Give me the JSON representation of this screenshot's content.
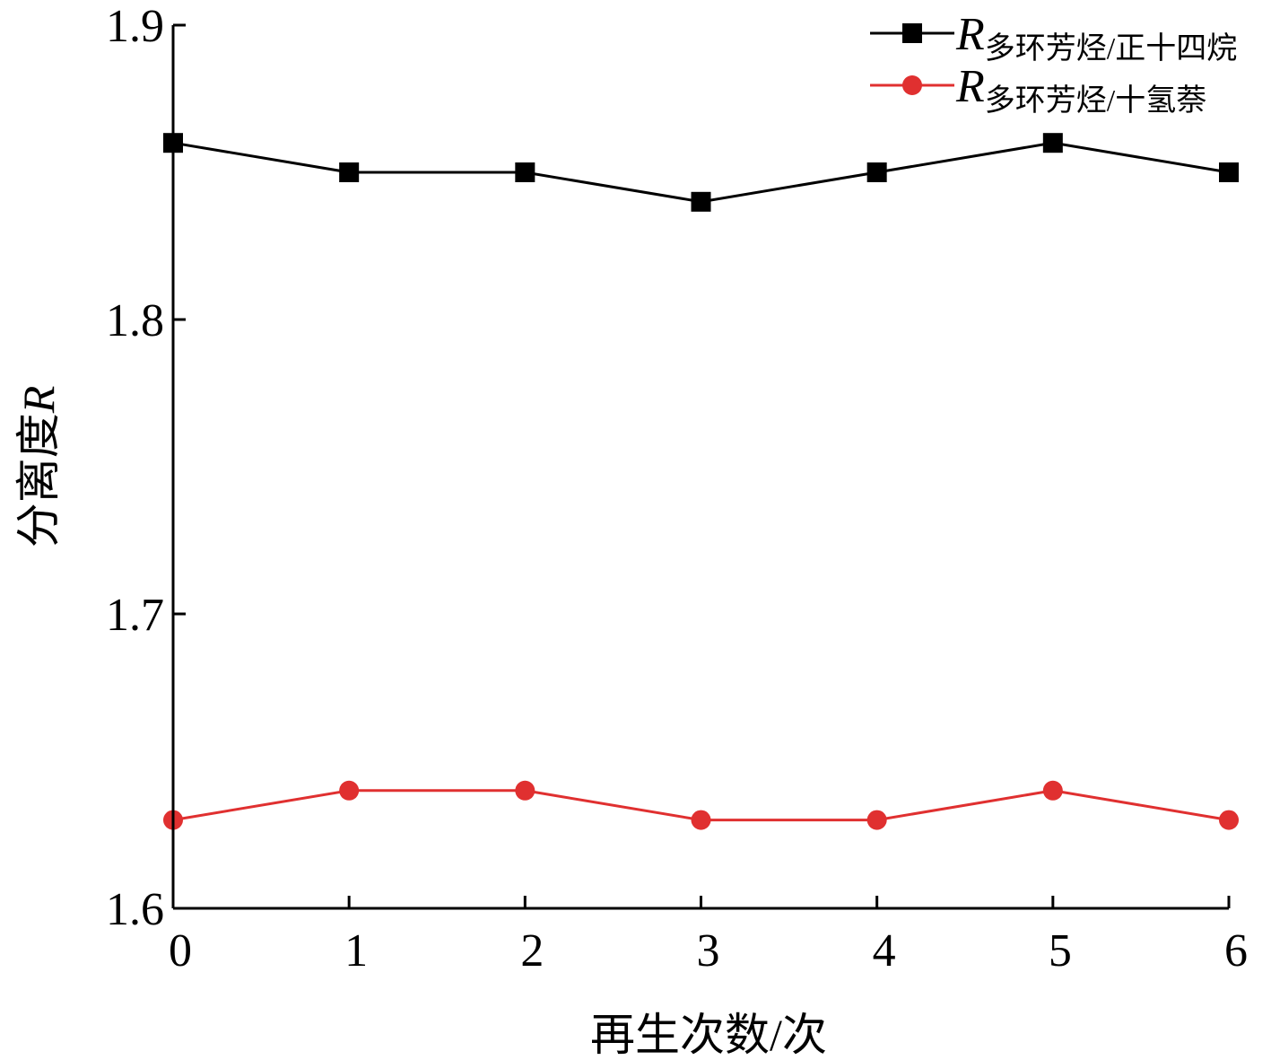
{
  "chart_data": {
    "type": "line",
    "title": "",
    "xlabel": "再生次数/次",
    "ylabel": "分离度",
    "ylabel_italic": "R",
    "x": [
      0,
      1,
      2,
      3,
      4,
      5,
      6
    ],
    "x_ticks": [
      "0",
      "1",
      "2",
      "3",
      "4",
      "5",
      "6"
    ],
    "ylim": [
      1.6,
      1.9
    ],
    "y_ticks": [
      "1.6",
      "1.7",
      "1.8",
      "1.9"
    ],
    "grid": false,
    "legend_position": "top-right",
    "series": [
      {
        "name_main": "R",
        "name_sub": "多环芳烃/正十四烷",
        "marker": "square",
        "color": "#000000",
        "values": [
          1.86,
          1.85,
          1.85,
          1.84,
          1.85,
          1.86,
          1.85
        ]
      },
      {
        "name_main": "R",
        "name_sub": "多环芳烃/十氢萘",
        "marker": "circle",
        "color": "#e03030",
        "values": [
          1.63,
          1.64,
          1.64,
          1.63,
          1.63,
          1.64,
          1.63
        ]
      }
    ]
  }
}
